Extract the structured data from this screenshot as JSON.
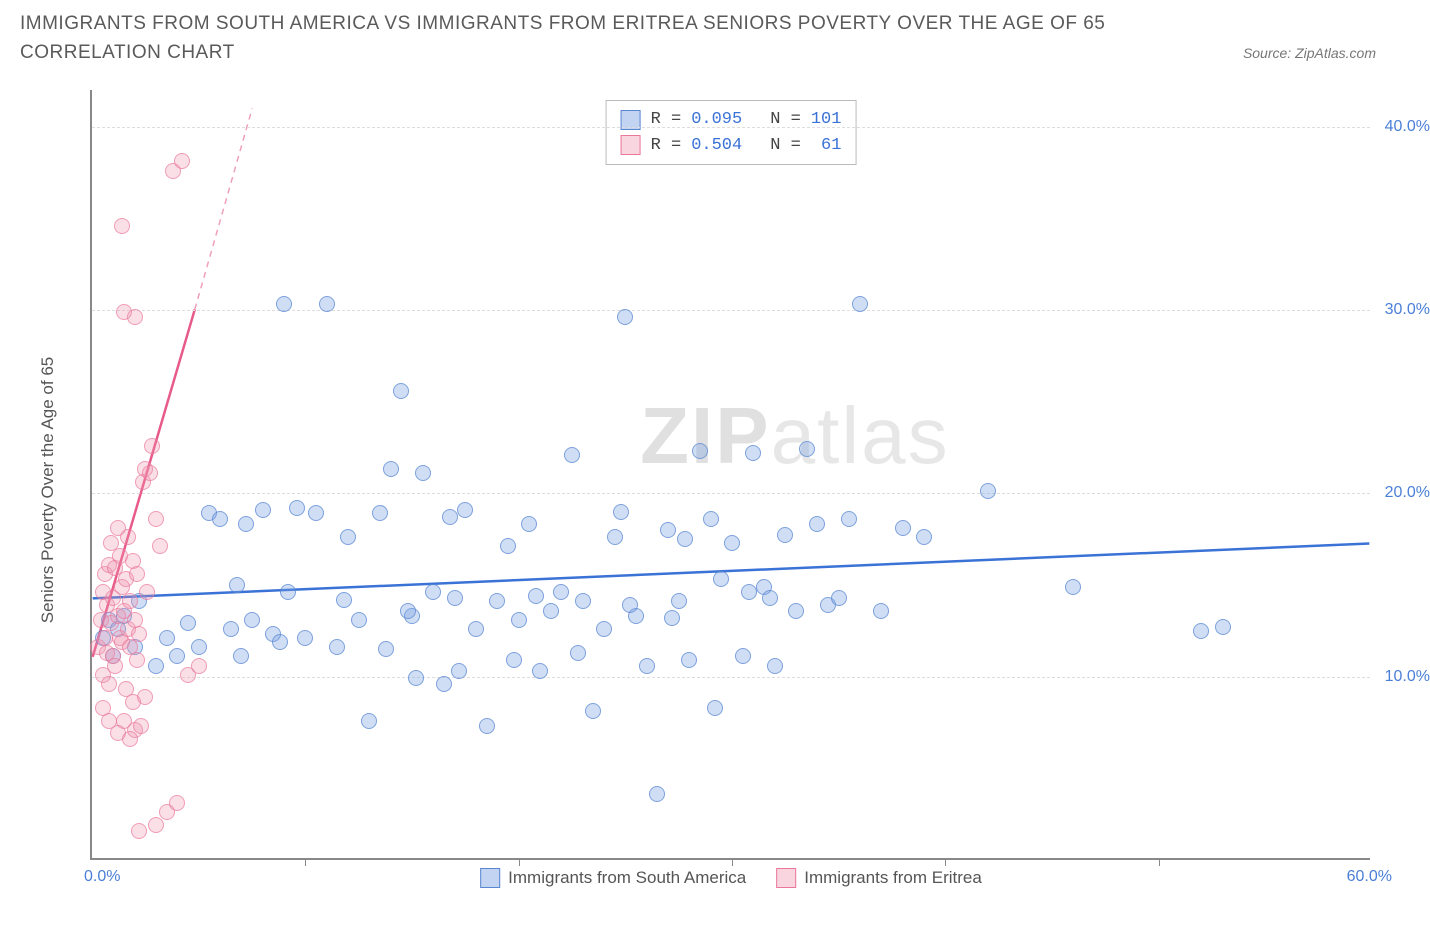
{
  "title": "IMMIGRANTS FROM SOUTH AMERICA VS IMMIGRANTS FROM ERITREA SENIORS POVERTY OVER THE AGE OF 65 CORRELATION CHART",
  "source": "Source: ZipAtlas.com",
  "watermark_bold": "ZIP",
  "watermark_light": "atlas",
  "chart": {
    "type": "scatter",
    "y_axis_label": "Seniors Poverty Over the Age of 65",
    "xlim": [
      0,
      60
    ],
    "ylim": [
      0,
      42
    ],
    "x_tick_positions": [
      10,
      20,
      30,
      40,
      50
    ],
    "x_tick_label_left": "0.0%",
    "x_tick_label_right": "60.0%",
    "y_ticks": [
      {
        "v": 10,
        "label": "10.0%"
      },
      {
        "v": 20,
        "label": "20.0%"
      },
      {
        "v": 30,
        "label": "30.0%"
      },
      {
        "v": 40,
        "label": "40.0%"
      }
    ],
    "grid_color": "#dddddd",
    "axis_color": "#888888",
    "background_color": "#ffffff",
    "series": [
      {
        "name": "Immigrants from South America",
        "color_fill": "rgba(120,160,225,0.35)",
        "color_stroke": "#5a87d2",
        "r_value": "0.095",
        "n_value": "101",
        "trend": {
          "x1": 0,
          "y1": 14.2,
          "x2": 60,
          "y2": 17.2,
          "color": "#3a72d6",
          "width": 2.5
        },
        "points": [
          [
            0.5,
            12
          ],
          [
            0.8,
            13
          ],
          [
            1,
            11
          ],
          [
            1.2,
            12.5
          ],
          [
            1.5,
            13.2
          ],
          [
            2,
            11.5
          ],
          [
            2.2,
            14
          ],
          [
            3,
            10.5
          ],
          [
            3.5,
            12
          ],
          [
            4,
            11
          ],
          [
            5,
            11.5
          ],
          [
            5.5,
            18.8
          ],
          [
            6,
            18.5
          ],
          [
            6.5,
            12.5
          ],
          [
            7,
            11
          ],
          [
            7.5,
            13
          ],
          [
            8,
            19
          ],
          [
            8.5,
            12.2
          ],
          [
            9,
            30.2
          ],
          [
            9.2,
            14.5
          ],
          [
            10,
            12
          ],
          [
            10.5,
            18.8
          ],
          [
            11,
            30.2
          ],
          [
            11.5,
            11.5
          ],
          [
            12,
            17.5
          ],
          [
            12.5,
            13
          ],
          [
            13,
            7.5
          ],
          [
            13.5,
            18.8
          ],
          [
            14,
            21.2
          ],
          [
            14.5,
            25.5
          ],
          [
            15,
            13.2
          ],
          [
            15.5,
            21
          ],
          [
            16,
            14.5
          ],
          [
            16.5,
            9.5
          ],
          [
            17,
            14.2
          ],
          [
            17.5,
            19
          ],
          [
            18,
            12.5
          ],
          [
            18.5,
            7.2
          ],
          [
            19,
            14
          ],
          [
            19.5,
            17
          ],
          [
            20,
            13
          ],
          [
            20.5,
            18.2
          ],
          [
            21,
            10.2
          ],
          [
            21.5,
            13.5
          ],
          [
            22,
            14.5
          ],
          [
            22.5,
            22
          ],
          [
            23,
            14
          ],
          [
            23.5,
            8
          ],
          [
            24,
            12.5
          ],
          [
            24.5,
            17.5
          ],
          [
            25,
            29.5
          ],
          [
            25.5,
            13.2
          ],
          [
            26,
            10.5
          ],
          [
            26.5,
            3.5
          ],
          [
            27,
            17.9
          ],
          [
            27.5,
            14
          ],
          [
            28,
            10.8
          ],
          [
            28.5,
            22.2
          ],
          [
            29,
            18.5
          ],
          [
            29.5,
            15.2
          ],
          [
            30,
            17.2
          ],
          [
            30.5,
            11
          ],
          [
            31,
            22.1
          ],
          [
            31.5,
            14.8
          ],
          [
            32,
            10.5
          ],
          [
            32.5,
            17.6
          ],
          [
            33,
            13.5
          ],
          [
            33.5,
            22.3
          ],
          [
            34,
            18.2
          ],
          [
            34.5,
            13.8
          ],
          [
            35,
            14.2
          ],
          [
            35.5,
            18.5
          ],
          [
            36,
            30.2
          ],
          [
            37,
            13.5
          ],
          [
            38,
            18
          ],
          [
            39,
            17.5
          ],
          [
            42,
            20
          ],
          [
            46,
            14.8
          ],
          [
            52,
            12.4
          ],
          [
            53,
            12.6
          ],
          [
            4.5,
            12.8
          ],
          [
            6.8,
            14.9
          ],
          [
            8.8,
            11.8
          ],
          [
            11.8,
            14.1
          ],
          [
            13.8,
            11.4
          ],
          [
            15.2,
            9.8
          ],
          [
            17.2,
            10.2
          ],
          [
            19.8,
            10.8
          ],
          [
            22.8,
            11.2
          ],
          [
            25.2,
            13.8
          ],
          [
            27.8,
            17.4
          ],
          [
            29.2,
            8.2
          ],
          [
            31.8,
            14.2
          ],
          [
            7.2,
            18.2
          ],
          [
            9.6,
            19.1
          ],
          [
            14.8,
            13.5
          ],
          [
            16.8,
            18.6
          ],
          [
            20.8,
            14.3
          ],
          [
            24.8,
            18.9
          ],
          [
            27.2,
            13.1
          ],
          [
            30.8,
            14.5
          ]
        ]
      },
      {
        "name": "Immigrants from Eritrea",
        "color_fill": "rgba(240,150,175,0.3)",
        "color_stroke": "#eb789b",
        "r_value": "0.504",
        "n_value": "61",
        "trend_solid": {
          "x1": 0,
          "y1": 11,
          "x2": 4.8,
          "y2": 30,
          "color": "#e85a8a",
          "width": 2.5
        },
        "trend_dashed": {
          "x1": 4.8,
          "y1": 30,
          "x2": 7.5,
          "y2": 41,
          "color": "#f0a0b8",
          "width": 1.5
        },
        "points": [
          [
            0.3,
            11.5
          ],
          [
            0.4,
            13
          ],
          [
            0.5,
            10
          ],
          [
            0.5,
            14.5
          ],
          [
            0.6,
            12
          ],
          [
            0.6,
            15.5
          ],
          [
            0.7,
            11.2
          ],
          [
            0.7,
            13.8
          ],
          [
            0.8,
            16
          ],
          [
            0.8,
            9.5
          ],
          [
            0.9,
            12.8
          ],
          [
            0.9,
            17.2
          ],
          [
            1.0,
            11
          ],
          [
            1.0,
            14.2
          ],
          [
            1.1,
            15.8
          ],
          [
            1.1,
            10.5
          ],
          [
            1.2,
            13.2
          ],
          [
            1.2,
            18
          ],
          [
            1.3,
            12
          ],
          [
            1.3,
            16.5
          ],
          [
            1.4,
            11.8
          ],
          [
            1.4,
            14.8
          ],
          [
            1.5,
            7.5
          ],
          [
            1.5,
            13.5
          ],
          [
            1.6,
            15.2
          ],
          [
            1.6,
            9.2
          ],
          [
            1.7,
            12.5
          ],
          [
            1.7,
            17.5
          ],
          [
            1.8,
            11.5
          ],
          [
            1.8,
            14
          ],
          [
            1.9,
            8.5
          ],
          [
            1.9,
            16.2
          ],
          [
            2.0,
            7
          ],
          [
            2.0,
            13
          ],
          [
            2.1,
            15.5
          ],
          [
            2.1,
            10.8
          ],
          [
            2.2,
            12.2
          ],
          [
            2.3,
            7.2
          ],
          [
            2.4,
            20.5
          ],
          [
            2.5,
            21.2
          ],
          [
            2.6,
            14.5
          ],
          [
            2.7,
            21
          ],
          [
            2.8,
            22.5
          ],
          [
            3.0,
            18.5
          ],
          [
            3.2,
            17
          ],
          [
            1.5,
            29.8
          ],
          [
            2.0,
            29.5
          ],
          [
            0.5,
            8.2
          ],
          [
            0.8,
            7.5
          ],
          [
            1.2,
            6.8
          ],
          [
            1.8,
            6.5
          ],
          [
            2.5,
            8.8
          ],
          [
            3.5,
            2.5
          ],
          [
            4.0,
            3
          ],
          [
            1.4,
            34.5
          ],
          [
            3.8,
            37.5
          ],
          [
            4.2,
            38
          ],
          [
            2.2,
            1.5
          ],
          [
            3.0,
            1.8
          ],
          [
            4.5,
            10
          ],
          [
            5.0,
            10.5
          ]
        ]
      }
    ],
    "stats_box": {
      "series1": {
        "swatch": "blue",
        "r_label": "R =",
        "r": "0.095",
        "n_label": "N =",
        "n": "101"
      },
      "series2": {
        "swatch": "pink",
        "r_label": "R =",
        "r": "0.504",
        "n_label": "N =",
        "n": " 61"
      }
    },
    "bottom_legend": [
      {
        "swatch": "blue",
        "label": "Immigrants from South America"
      },
      {
        "swatch": "pink",
        "label": "Immigrants from Eritrea"
      }
    ],
    "label_fontsize": 17,
    "tick_fontsize": 16,
    "marker_radius": 8
  }
}
